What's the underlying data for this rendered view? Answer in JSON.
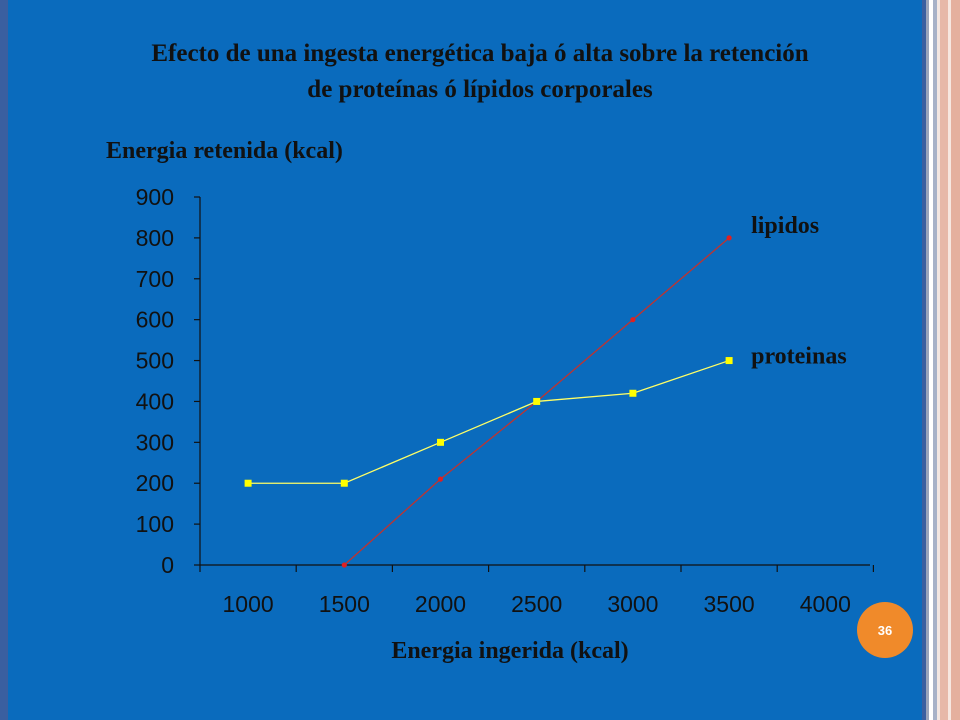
{
  "slide": {
    "title_line1": "Efecto de una ingesta energética baja ó alta sobre la retención",
    "title_line2": "de proteínas  ó lípidos corporales",
    "page_number": "36"
  },
  "colors": {
    "background": "#0a6bbd",
    "lipidos_line": "#c0332f",
    "lipidos_marker": "#e02020",
    "proteinas_line": "#ffff66",
    "proteinas_marker": "#ffff00",
    "axis": "#111111",
    "badge": "#f08a2a"
  },
  "chart_data": {
    "type": "line",
    "ylabel": "Energia retenida (kcal)",
    "xlabel": "Energia ingerida (kcal)",
    "ylim": [
      0,
      900
    ],
    "yticks": [
      0,
      100,
      200,
      300,
      400,
      500,
      600,
      700,
      800,
      900
    ],
    "xticks": [
      "1000",
      "1500",
      "2000",
      "2500",
      "3000",
      "3500",
      "4000"
    ],
    "grid": false,
    "x": [
      1000,
      1500,
      2000,
      2500,
      3000,
      3500
    ],
    "series": [
      {
        "name": "lipidos",
        "values": [
          null,
          0,
          210,
          400,
          600,
          800
        ]
      },
      {
        "name": "proteinas",
        "values": [
          200,
          200,
          300,
          400,
          420,
          500
        ]
      }
    ]
  }
}
